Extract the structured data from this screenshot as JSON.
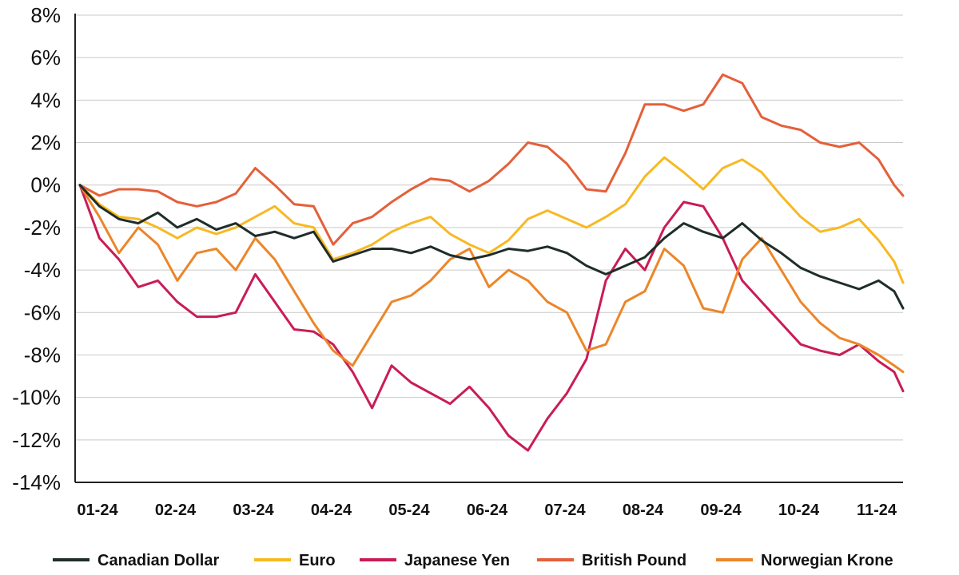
{
  "chart_data": {
    "type": "line",
    "title": "",
    "xlabel": "",
    "ylabel": "",
    "ylim": [
      -14,
      8
    ],
    "y_ticks": [
      8,
      6,
      4,
      2,
      0,
      -2,
      -4,
      -6,
      -8,
      -10,
      -12,
      -14
    ],
    "y_tick_labels": [
      "8%",
      "6%",
      "4%",
      "2%",
      "0%",
      "-2%",
      "-4%",
      "-6%",
      "-8%",
      "-10%",
      "-12%",
      "-14%"
    ],
    "x_tick_labels": [
      "01-24",
      "02-24",
      "03-24",
      "04-24",
      "05-24",
      "06-24",
      "07-24",
      "08-24",
      "09-24",
      "10-24",
      "11-24"
    ],
    "x_unit": "month index (0 = Jan 2024)",
    "xlim": [
      0,
      10.6
    ],
    "grid": true,
    "legend_position": "bottom",
    "series": [
      {
        "name": "Canadian Dollar",
        "color": "#1f2d2b",
        "x": [
          0,
          0.25,
          0.5,
          0.75,
          1.0,
          1.25,
          1.5,
          1.75,
          2.0,
          2.25,
          2.5,
          2.75,
          3.0,
          3.25,
          3.5,
          3.75,
          4.0,
          4.25,
          4.5,
          4.75,
          5.0,
          5.25,
          5.5,
          5.75,
          6.0,
          6.25,
          6.5,
          6.75,
          7.0,
          7.25,
          7.5,
          7.75,
          8.0,
          8.25,
          8.5,
          8.75,
          9.0,
          9.25,
          9.5,
          9.75,
          10.0,
          10.25,
          10.45,
          10.6
        ],
        "values": [
          0,
          -1.0,
          -1.6,
          -1.8,
          -1.3,
          -2.0,
          -1.6,
          -2.1,
          -1.8,
          -2.4,
          -2.2,
          -2.5,
          -2.2,
          -3.6,
          -3.3,
          -3.0,
          -3.0,
          -3.2,
          -2.9,
          -3.3,
          -3.5,
          -3.3,
          -3.0,
          -3.1,
          -2.9,
          -3.2,
          -3.8,
          -4.2,
          -3.8,
          -3.4,
          -2.5,
          -1.8,
          -2.2,
          -2.5,
          -1.8,
          -2.6,
          -3.2,
          -3.9,
          -4.3,
          -4.6,
          -4.9,
          -4.5,
          -5.0,
          -5.8
        ]
      },
      {
        "name": "Euro",
        "color": "#f7b923",
        "x": [
          0,
          0.25,
          0.5,
          0.75,
          1.0,
          1.25,
          1.5,
          1.75,
          2.0,
          2.25,
          2.5,
          2.75,
          3.0,
          3.25,
          3.5,
          3.75,
          4.0,
          4.25,
          4.5,
          4.75,
          5.0,
          5.25,
          5.5,
          5.75,
          6.0,
          6.25,
          6.5,
          6.75,
          7.0,
          7.25,
          7.5,
          7.75,
          8.0,
          8.25,
          8.5,
          8.75,
          9.0,
          9.25,
          9.5,
          9.75,
          10.0,
          10.25,
          10.45,
          10.6
        ],
        "values": [
          0,
          -0.9,
          -1.5,
          -1.6,
          -2.0,
          -2.5,
          -2.0,
          -2.3,
          -2.0,
          -1.5,
          -1.0,
          -1.8,
          -2.0,
          -3.5,
          -3.2,
          -2.8,
          -2.2,
          -1.8,
          -1.5,
          -2.3,
          -2.8,
          -3.2,
          -2.6,
          -1.6,
          -1.2,
          -1.6,
          -2.0,
          -1.5,
          -0.9,
          0.4,
          1.3,
          0.6,
          -0.2,
          0.8,
          1.2,
          0.6,
          -0.5,
          -1.5,
          -2.2,
          -2.0,
          -1.6,
          -2.6,
          -3.6,
          -4.6
        ]
      },
      {
        "name": "Japanese Yen",
        "color": "#c91d54",
        "x": [
          0,
          0.25,
          0.5,
          0.75,
          1.0,
          1.25,
          1.5,
          1.75,
          2.0,
          2.25,
          2.5,
          2.75,
          3.0,
          3.25,
          3.5,
          3.75,
          4.0,
          4.25,
          4.5,
          4.75,
          5.0,
          5.25,
          5.5,
          5.75,
          6.0,
          6.25,
          6.5,
          6.75,
          7.0,
          7.25,
          7.5,
          7.75,
          8.0,
          8.25,
          8.5,
          8.75,
          9.0,
          9.25,
          9.5,
          9.75,
          10.0,
          10.25,
          10.45,
          10.6
        ],
        "values": [
          0,
          -2.5,
          -3.5,
          -4.8,
          -4.5,
          -5.5,
          -6.2,
          -6.2,
          -6.0,
          -4.2,
          -5.5,
          -6.8,
          -6.9,
          -7.5,
          -8.8,
          -10.5,
          -8.5,
          -9.3,
          -9.8,
          -10.3,
          -9.5,
          -10.5,
          -11.8,
          -12.5,
          -11.0,
          -9.8,
          -8.2,
          -4.5,
          -3.0,
          -4.0,
          -2.0,
          -0.8,
          -1.0,
          -2.5,
          -4.5,
          -5.5,
          -6.5,
          -7.5,
          -7.8,
          -8.0,
          -7.5,
          -8.3,
          -8.8,
          -9.7
        ]
      },
      {
        "name": "British Pound",
        "color": "#e4603a",
        "x": [
          0,
          0.25,
          0.5,
          0.75,
          1.0,
          1.25,
          1.5,
          1.75,
          2.0,
          2.25,
          2.5,
          2.75,
          3.0,
          3.25,
          3.5,
          3.75,
          4.0,
          4.25,
          4.5,
          4.75,
          5.0,
          5.25,
          5.5,
          5.75,
          6.0,
          6.25,
          6.5,
          6.75,
          7.0,
          7.25,
          7.5,
          7.75,
          8.0,
          8.25,
          8.5,
          8.75,
          9.0,
          9.25,
          9.5,
          9.75,
          10.0,
          10.25,
          10.45,
          10.6
        ],
        "values": [
          0,
          -0.5,
          -0.2,
          -0.2,
          -0.3,
          -0.8,
          -1.0,
          -0.8,
          -0.4,
          0.8,
          0.0,
          -0.9,
          -1.0,
          -2.8,
          -1.8,
          -1.5,
          -0.8,
          -0.2,
          0.3,
          0.2,
          -0.3,
          0.2,
          1.0,
          2.0,
          1.8,
          1.0,
          -0.2,
          -0.3,
          1.5,
          3.8,
          3.8,
          3.5,
          3.8,
          5.2,
          4.8,
          3.2,
          2.8,
          2.6,
          2.0,
          1.8,
          2.0,
          1.2,
          0.0,
          -0.5
        ]
      },
      {
        "name": "Norwegian Krone",
        "color": "#ec8629",
        "x": [
          0,
          0.25,
          0.5,
          0.75,
          1.0,
          1.25,
          1.5,
          1.75,
          2.0,
          2.25,
          2.5,
          2.75,
          3.0,
          3.25,
          3.5,
          3.75,
          4.0,
          4.25,
          4.5,
          4.75,
          5.0,
          5.25,
          5.5,
          5.75,
          6.0,
          6.25,
          6.5,
          6.75,
          7.0,
          7.25,
          7.5,
          7.75,
          8.0,
          8.25,
          8.5,
          8.75,
          9.0,
          9.25,
          9.5,
          9.75,
          10.0,
          10.25,
          10.45,
          10.6
        ],
        "values": [
          0,
          -1.5,
          -3.2,
          -2.0,
          -2.8,
          -4.5,
          -3.2,
          -3.0,
          -4.0,
          -2.5,
          -3.5,
          -5.0,
          -6.5,
          -7.8,
          -8.5,
          -7.0,
          -5.5,
          -5.2,
          -4.5,
          -3.5,
          -3.0,
          -4.8,
          -4.0,
          -4.5,
          -5.5,
          -6.0,
          -7.8,
          -7.5,
          -5.5,
          -5.0,
          -3.0,
          -3.8,
          -5.8,
          -6.0,
          -3.5,
          -2.5,
          -4.0,
          -5.5,
          -6.5,
          -7.2,
          -7.5,
          -8.0,
          -8.5,
          -8.8
        ]
      }
    ]
  }
}
